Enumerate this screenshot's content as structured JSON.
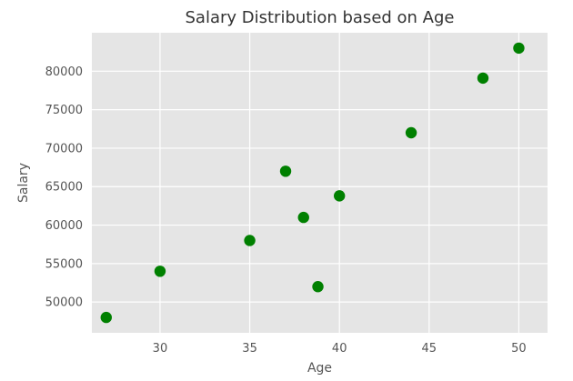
{
  "chart_data": {
    "type": "scatter",
    "title": "Salary Distribution based on Age",
    "xlabel": "Age",
    "ylabel": "Salary",
    "xlim": [
      26.2,
      51.6
    ],
    "ylim": [
      46000,
      85000
    ],
    "xticks": [
      30,
      35,
      40,
      45,
      50
    ],
    "yticks": [
      50000,
      55000,
      60000,
      65000,
      70000,
      75000,
      80000
    ],
    "grid": true,
    "points": [
      {
        "x": 27,
        "y": 48000
      },
      {
        "x": 30,
        "y": 54000
      },
      {
        "x": 35,
        "y": 58000
      },
      {
        "x": 37,
        "y": 67000
      },
      {
        "x": 38,
        "y": 61000
      },
      {
        "x": 38.8,
        "y": 52000
      },
      {
        "x": 40,
        "y": 63800
      },
      {
        "x": 44,
        "y": 72000
      },
      {
        "x": 48,
        "y": 79100
      },
      {
        "x": 50,
        "y": 83000
      }
    ],
    "colors": {
      "background": "#e5e5e5",
      "grid": "#ffffff",
      "marker": "#008000",
      "text": "#555555",
      "title": "#333333"
    }
  }
}
